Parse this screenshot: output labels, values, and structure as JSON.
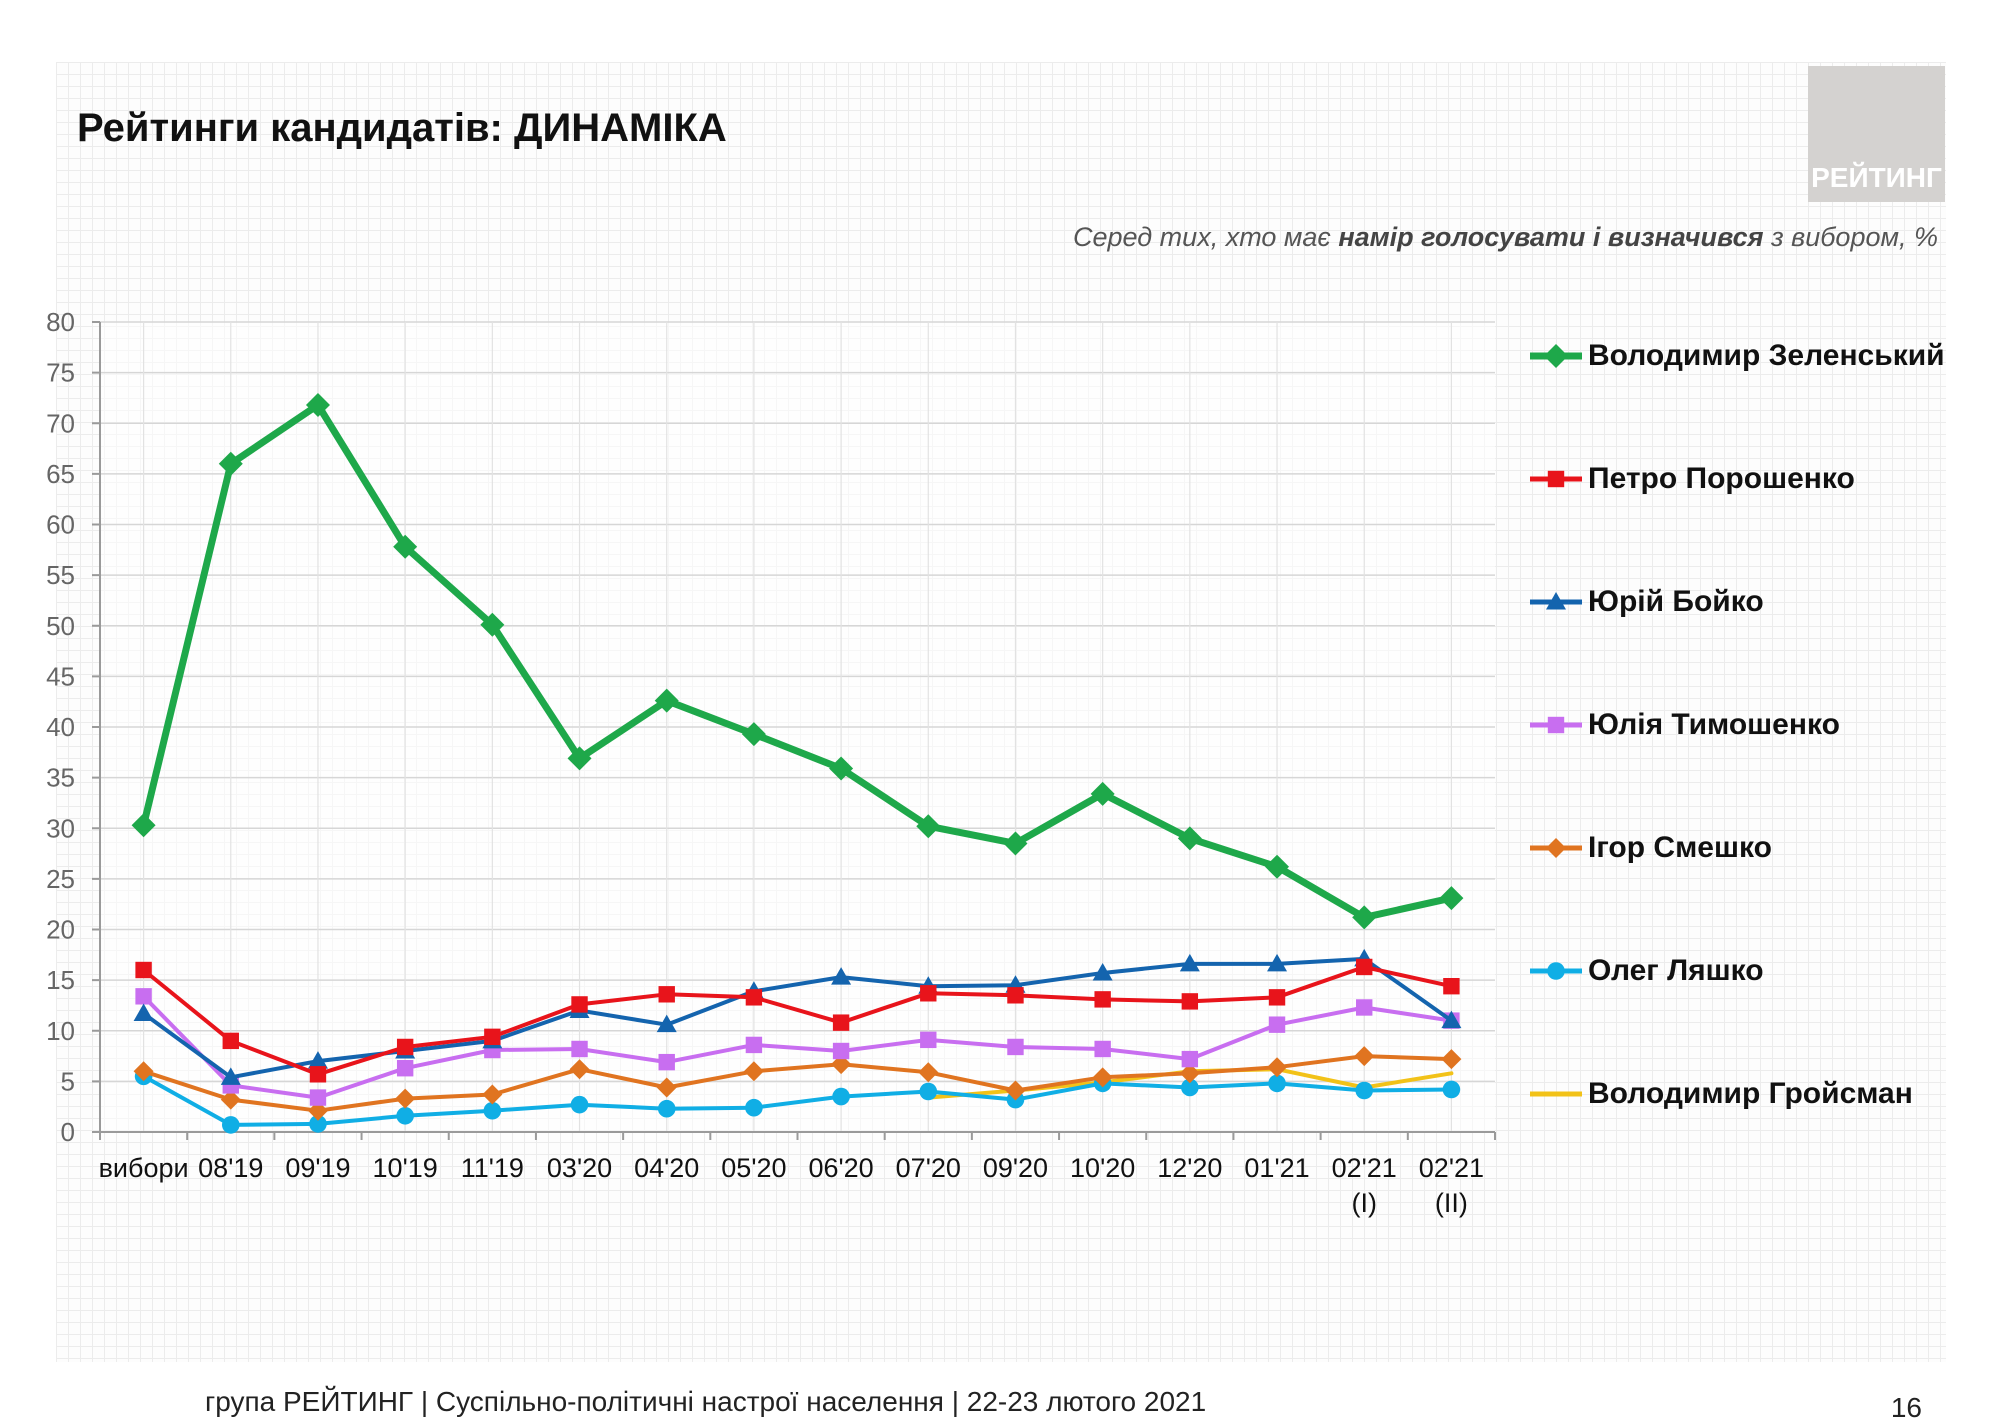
{
  "title": "Рейтинги кандидатів: ДИНАМІКА",
  "logo_text": "РЕЙТИНГ",
  "subtitle": {
    "prefix": "Серед тих, хто має ",
    "bold": "намір голосувати і визначився",
    "suffix": " з вибором, %"
  },
  "footer": "група РЕЙТИНГ | Суспільно-політичні настрої населення  | 22-23 лютого 2021",
  "page_number": "16",
  "chart_data": {
    "type": "line",
    "title": "",
    "xlabel": "",
    "ylabel": "",
    "ylim": [
      0,
      80
    ],
    "yticks": [
      0,
      5,
      10,
      15,
      20,
      25,
      30,
      35,
      40,
      45,
      50,
      55,
      60,
      65,
      70,
      75,
      80
    ],
    "grid": true,
    "legend_position": "right",
    "categories": [
      [
        "вибори"
      ],
      [
        "08'19"
      ],
      [
        "09'19"
      ],
      [
        "10'19"
      ],
      [
        "11'19"
      ],
      [
        "03'20"
      ],
      [
        "04'20"
      ],
      [
        "05'20"
      ],
      [
        "06'20"
      ],
      [
        "07'20"
      ],
      [
        "09'20"
      ],
      [
        "10'20"
      ],
      [
        "12'20"
      ],
      [
        "01'21"
      ],
      [
        "02'21",
        "(I)"
      ],
      [
        "02'21",
        "(II)"
      ]
    ],
    "series": [
      {
        "name": "Володимир Зеленський",
        "color": "#1ea84a",
        "marker": "diamond",
        "width": 7,
        "values": [
          30.3,
          66,
          71.8,
          57.8,
          50.1,
          36.9,
          42.6,
          39.3,
          35.9,
          30.2,
          28.5,
          33.4,
          29,
          26.2,
          21.2,
          23.1
        ]
      },
      {
        "name": "Петро Порошенко",
        "color": "#e8141b",
        "marker": "square",
        "width": 4,
        "values": [
          16,
          9,
          5.7,
          8.4,
          9.4,
          12.6,
          13.6,
          13.3,
          10.8,
          13.7,
          13.5,
          13.1,
          12.9,
          13.3,
          16.3,
          14.4
        ]
      },
      {
        "name": "Юрій Бойко",
        "color": "#1464ae",
        "marker": "triangle",
        "width": 4,
        "values": [
          11.7,
          5.4,
          7,
          8,
          9,
          12,
          10.6,
          13.9,
          15.3,
          14.4,
          14.5,
          15.7,
          16.6,
          16.6,
          17.1,
          11
        ]
      },
      {
        "name": "Юлія Тимошенко",
        "color": "#c86ef0",
        "marker": "square",
        "width": 4,
        "values": [
          13.4,
          4.6,
          3.4,
          6.3,
          8.1,
          8.2,
          6.9,
          8.6,
          8,
          9.1,
          8.4,
          8.2,
          7.2,
          10.6,
          12.3,
          11
        ]
      },
      {
        "name": "Ігор Смешко",
        "color": "#e07420",
        "marker": "diamond",
        "width": 4,
        "values": [
          6,
          3.2,
          2.1,
          3.3,
          3.7,
          6.2,
          4.4,
          6,
          6.7,
          5.9,
          4.1,
          5.4,
          5.8,
          6.4,
          7.5,
          7.2
        ]
      },
      {
        "name": "Олег Ляшко",
        "color": "#10aee5",
        "marker": "circle",
        "width": 4,
        "values": [
          5.5,
          0.7,
          0.8,
          1.6,
          2.1,
          2.7,
          2.3,
          2.4,
          3.5,
          4,
          3.2,
          4.8,
          4.4,
          4.8,
          4.1,
          4.2
        ]
      },
      {
        "name": "Володимир Гройсман",
        "color": "#f2c218",
        "marker": "none",
        "width": 4,
        "values": [
          null,
          null,
          null,
          null,
          null,
          null,
          null,
          null,
          null,
          3.4,
          4.1,
          4.9,
          6,
          6.2,
          4.4,
          5.8
        ]
      }
    ]
  }
}
